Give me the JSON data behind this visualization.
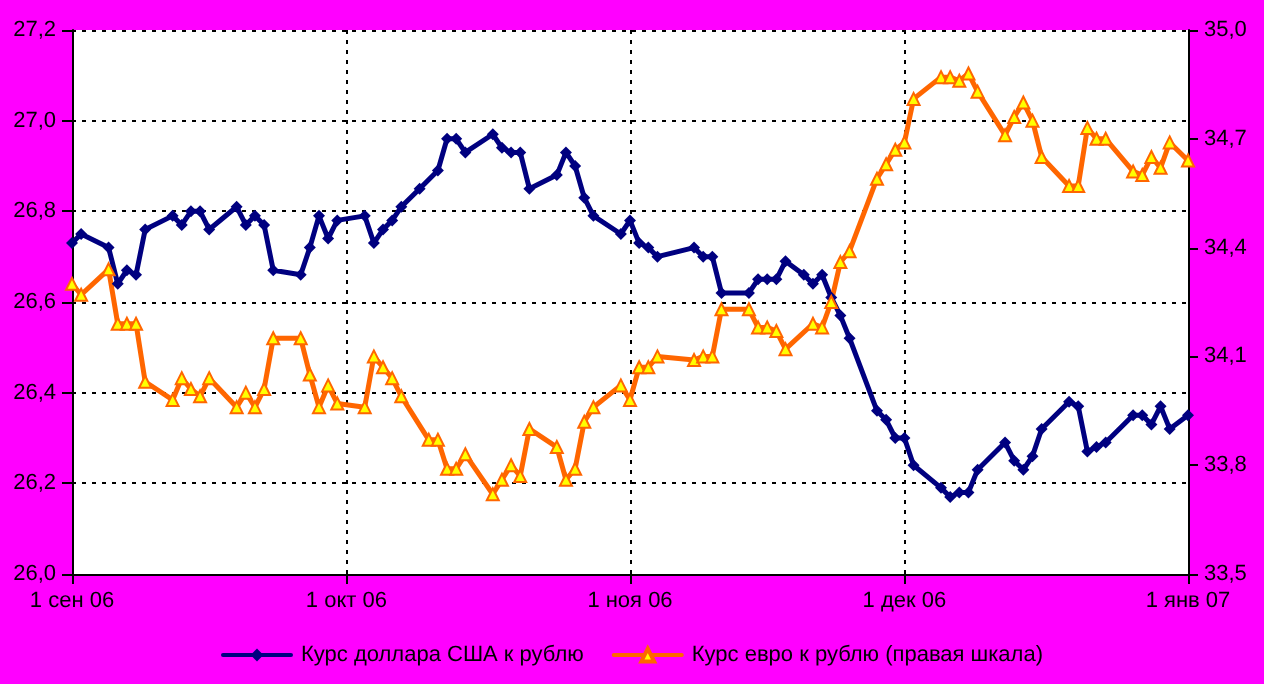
{
  "chart_data": {
    "type": "line",
    "xlim": [
      "2006-09-01",
      "2007-01-01"
    ],
    "xticks": [
      {
        "value": "2006-09-01",
        "label": "1 сен 06"
      },
      {
        "value": "2006-10-01",
        "label": "1 окт 06"
      },
      {
        "value": "2006-11-01",
        "label": "1 ноя 06"
      },
      {
        "value": "2006-12-01",
        "label": "1 дек 06"
      },
      {
        "value": "2007-01-01",
        "label": "1 янв 07"
      }
    ],
    "ylim": [
      26.0,
      27.2
    ],
    "yticks": [
      {
        "value": 26.0,
        "label": "26,0"
      },
      {
        "value": 26.2,
        "label": "26,2"
      },
      {
        "value": 26.4,
        "label": "26,4"
      },
      {
        "value": 26.6,
        "label": "26,6"
      },
      {
        "value": 26.8,
        "label": "26,8"
      },
      {
        "value": 27.0,
        "label": "27,0"
      },
      {
        "value": 27.2,
        "label": "27,2"
      }
    ],
    "y2lim": [
      33.5,
      35.0
    ],
    "y2ticks": [
      {
        "value": 33.5,
        "label": "33,5"
      },
      {
        "value": 33.8,
        "label": "33,8"
      },
      {
        "value": 34.1,
        "label": "34,1"
      },
      {
        "value": 34.4,
        "label": "34,4"
      },
      {
        "value": 34.7,
        "label": "34,7"
      },
      {
        "value": 35.0,
        "label": "35,0"
      }
    ],
    "grid": true,
    "legend": "bottom",
    "line_style": "solid",
    "series": [
      {
        "name": "Курс доллара США к рублю",
        "color": "#000080",
        "marker": "diamond",
        "x": [
          "2006-09-01",
          "2006-09-02",
          "2006-09-05",
          "2006-09-06",
          "2006-09-07",
          "2006-09-08",
          "2006-09-09",
          "2006-09-12",
          "2006-09-13",
          "2006-09-14",
          "2006-09-15",
          "2006-09-16",
          "2006-09-19",
          "2006-09-20",
          "2006-09-21",
          "2006-09-22",
          "2006-09-23",
          "2006-09-26",
          "2006-09-27",
          "2006-09-28",
          "2006-09-29",
          "2006-09-30",
          "2006-10-03",
          "2006-10-04",
          "2006-10-05",
          "2006-10-06",
          "2006-10-07",
          "2006-10-09",
          "2006-10-11",
          "2006-10-12",
          "2006-10-13",
          "2006-10-14",
          "2006-10-17",
          "2006-10-18",
          "2006-10-19",
          "2006-10-20",
          "2006-10-21",
          "2006-10-24",
          "2006-10-25",
          "2006-10-26",
          "2006-10-27",
          "2006-10-28",
          "2006-10-31",
          "2006-11-01",
          "2006-11-02",
          "2006-11-03",
          "2006-11-04",
          "2006-11-08",
          "2006-11-09",
          "2006-11-10",
          "2006-11-11",
          "2006-11-14",
          "2006-11-15",
          "2006-11-16",
          "2006-11-17",
          "2006-11-18",
          "2006-11-20",
          "2006-11-21",
          "2006-11-22",
          "2006-11-23",
          "2006-11-24",
          "2006-11-25",
          "2006-11-28",
          "2006-11-29",
          "2006-11-30",
          "2006-12-01",
          "2006-12-02",
          "2006-12-05",
          "2006-12-06",
          "2006-12-07",
          "2006-12-08",
          "2006-12-09",
          "2006-12-12",
          "2006-12-13",
          "2006-12-14",
          "2006-12-15",
          "2006-12-16",
          "2006-12-19",
          "2006-12-20",
          "2006-12-21",
          "2006-12-22",
          "2006-12-23",
          "2006-12-26",
          "2006-12-27",
          "2006-12-28",
          "2006-12-29",
          "2006-12-30",
          "2007-01-01"
        ],
        "values": [
          26.73,
          26.75,
          26.72,
          26.64,
          26.67,
          26.66,
          26.76,
          26.79,
          26.77,
          26.8,
          26.8,
          26.76,
          26.81,
          26.77,
          26.79,
          26.77,
          26.67,
          26.66,
          26.72,
          26.79,
          26.74,
          26.78,
          26.79,
          26.73,
          26.76,
          26.78,
          26.81,
          26.85,
          26.89,
          26.96,
          26.96,
          26.93,
          26.97,
          26.94,
          26.93,
          26.93,
          26.85,
          26.88,
          26.93,
          26.9,
          26.83,
          26.79,
          26.75,
          26.78,
          26.73,
          26.72,
          26.7,
          26.72,
          26.7,
          26.7,
          26.62,
          26.62,
          26.65,
          26.65,
          26.65,
          26.69,
          26.66,
          26.64,
          26.66,
          26.61,
          26.57,
          26.52,
          26.36,
          26.34,
          26.3,
          26.3,
          26.24,
          26.19,
          26.17,
          26.18,
          26.18,
          26.23,
          26.29,
          26.25,
          26.23,
          26.26,
          26.32,
          26.38,
          26.37,
          26.27,
          26.28,
          26.29,
          26.35,
          26.35,
          26.33,
          26.37,
          26.32,
          26.35
        ]
      },
      {
        "name": "Курс евро к рублю (правая шкала)",
        "color": "#ff6600",
        "marker": "triangle",
        "axis": "y2",
        "x": [
          "2006-09-01",
          "2006-09-02",
          "2006-09-05",
          "2006-09-06",
          "2006-09-07",
          "2006-09-08",
          "2006-09-09",
          "2006-09-12",
          "2006-09-13",
          "2006-09-14",
          "2006-09-15",
          "2006-09-16",
          "2006-09-19",
          "2006-09-20",
          "2006-09-21",
          "2006-09-22",
          "2006-09-23",
          "2006-09-26",
          "2006-09-27",
          "2006-09-28",
          "2006-09-29",
          "2006-09-30",
          "2006-10-03",
          "2006-10-04",
          "2006-10-05",
          "2006-10-06",
          "2006-10-07",
          "2006-10-10",
          "2006-10-11",
          "2006-10-12",
          "2006-10-13",
          "2006-10-14",
          "2006-10-17",
          "2006-10-18",
          "2006-10-19",
          "2006-10-20",
          "2006-10-21",
          "2006-10-24",
          "2006-10-25",
          "2006-10-26",
          "2006-10-27",
          "2006-10-28",
          "2006-10-31",
          "2006-11-01",
          "2006-11-02",
          "2006-11-03",
          "2006-11-04",
          "2006-11-08",
          "2006-11-09",
          "2006-11-10",
          "2006-11-11",
          "2006-11-14",
          "2006-11-15",
          "2006-11-16",
          "2006-11-17",
          "2006-11-18",
          "2006-11-21",
          "2006-11-22",
          "2006-11-23",
          "2006-11-24",
          "2006-11-25",
          "2006-11-28",
          "2006-11-29",
          "2006-11-30",
          "2006-12-01",
          "2006-12-02",
          "2006-12-05",
          "2006-12-06",
          "2006-12-07",
          "2006-12-08",
          "2006-12-09",
          "2006-12-12",
          "2006-12-13",
          "2006-12-14",
          "2006-12-15",
          "2006-12-16",
          "2006-12-19",
          "2006-12-20",
          "2006-12-21",
          "2006-12-22",
          "2006-12-23",
          "2006-12-26",
          "2006-12-27",
          "2006-12-28",
          "2006-12-29",
          "2006-12-30",
          "2007-01-01"
        ],
        "values": [
          34.3,
          34.27,
          34.34,
          34.19,
          34.19,
          34.19,
          34.03,
          33.98,
          34.04,
          34.01,
          33.99,
          34.04,
          33.96,
          34.0,
          33.96,
          34.01,
          34.15,
          34.15,
          34.05,
          33.96,
          34.02,
          33.97,
          33.96,
          34.1,
          34.07,
          34.04,
          33.99,
          33.87,
          33.87,
          33.79,
          33.79,
          33.83,
          33.72,
          33.76,
          33.8,
          33.77,
          33.9,
          33.85,
          33.76,
          33.79,
          33.92,
          33.96,
          34.02,
          33.98,
          34.07,
          34.07,
          34.1,
          34.09,
          34.1,
          34.1,
          34.23,
          34.23,
          34.18,
          34.18,
          34.17,
          34.12,
          34.19,
          34.18,
          34.25,
          34.36,
          34.39,
          34.59,
          34.63,
          34.67,
          34.69,
          34.81,
          34.87,
          34.87,
          34.86,
          34.88,
          34.83,
          34.71,
          34.76,
          34.8,
          34.75,
          34.65,
          34.57,
          34.57,
          34.73,
          34.7,
          34.7,
          34.61,
          34.6,
          34.65,
          34.62,
          34.69,
          34.64
        ]
      }
    ]
  }
}
